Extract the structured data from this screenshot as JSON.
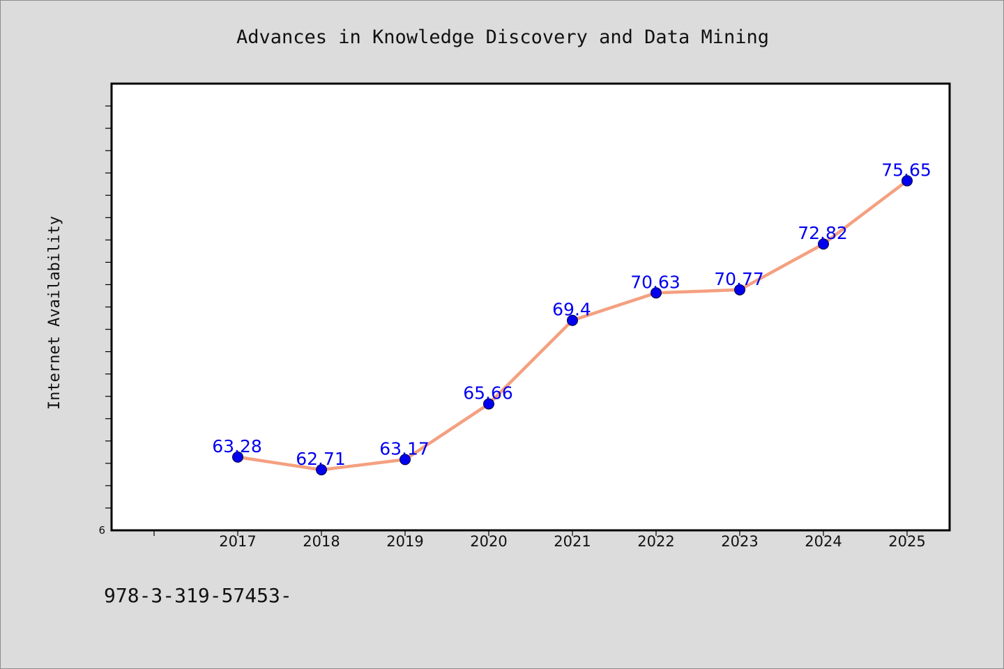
{
  "chart_data": {
    "type": "line",
    "title": "Advances in Knowledge Discovery and Data Mining",
    "xlabel": "",
    "ylabel": "Internet Availability",
    "categories": [
      "2017",
      "2018",
      "2019",
      "2020",
      "2021",
      "2022",
      "2023",
      "2024",
      "2025"
    ],
    "series": [
      {
        "values": [
          63.28,
          62.71,
          63.17,
          65.66,
          69.4,
          70.63,
          70.77,
          72.82,
          75.65
        ]
      }
    ],
    "data_labels": [
      "63.28",
      "62.71",
      "63.17",
      "65.66",
      "69.4",
      "70.63",
      "70.77",
      "72.82",
      "75.65"
    ],
    "ylim": [
      60,
      80
    ],
    "ytick_labels": [
      "6"
    ],
    "grid": false,
    "line_color": "#f4a080",
    "marker_color": "#0000ee",
    "label_color": "#0000ee"
  },
  "footnote": "978-3-319-57453-"
}
